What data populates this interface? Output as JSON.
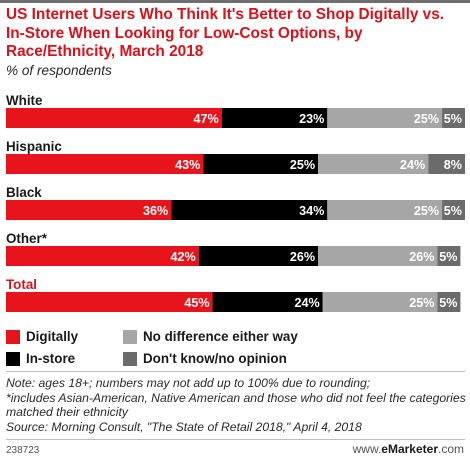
{
  "header": {
    "title": "US Internet Users Who Think It's Better to Shop Digitally vs. In-Store When Looking for Low-Cost Options, by Race/Ethnicity, March 2018",
    "subtitle": "% of respondents"
  },
  "colors": {
    "digitally": "#e8141b",
    "in_store": "#000000",
    "no_difference": "#a6a6a6",
    "dont_know": "#6b6b6b",
    "accent_red": "#d8111b"
  },
  "chart_data": {
    "type": "bar",
    "orientation": "horizontal",
    "stacked": true,
    "categories": [
      "White",
      "Hispanic",
      "Black",
      "Other*",
      "Total"
    ],
    "series": [
      {
        "name": "Digitally",
        "values": [
          47,
          43,
          36,
          42,
          45
        ]
      },
      {
        "name": "In-store",
        "values": [
          23,
          25,
          34,
          26,
          24
        ]
      },
      {
        "name": "No difference either way",
        "values": [
          25,
          24,
          25,
          26,
          25
        ]
      },
      {
        "name": "Don't know/no opinion",
        "values": [
          5,
          8,
          5,
          5,
          5
        ]
      }
    ],
    "value_suffix": "%",
    "xlim": [
      0,
      100
    ],
    "grid": false,
    "legend_position": "bottom"
  },
  "legend": {
    "digitally": "Digitally",
    "in_store": "In-store",
    "no_difference": "No difference either way",
    "dont_know": "Don't know/no opinion"
  },
  "notes": {
    "line1": "Note: ages 18+; numbers may not add up to 100% due to rounding;",
    "line2": "*includes Asian-American, Native American and those who did not feel the categories matched their ethnicity",
    "line3": "Source: Morning Consult, \"The State of Retail 2018,\" April 4, 2018"
  },
  "footer": {
    "id": "238723",
    "brand_prefix": "www.",
    "brand_name": "eMarketer",
    "brand_suffix": ".com"
  }
}
